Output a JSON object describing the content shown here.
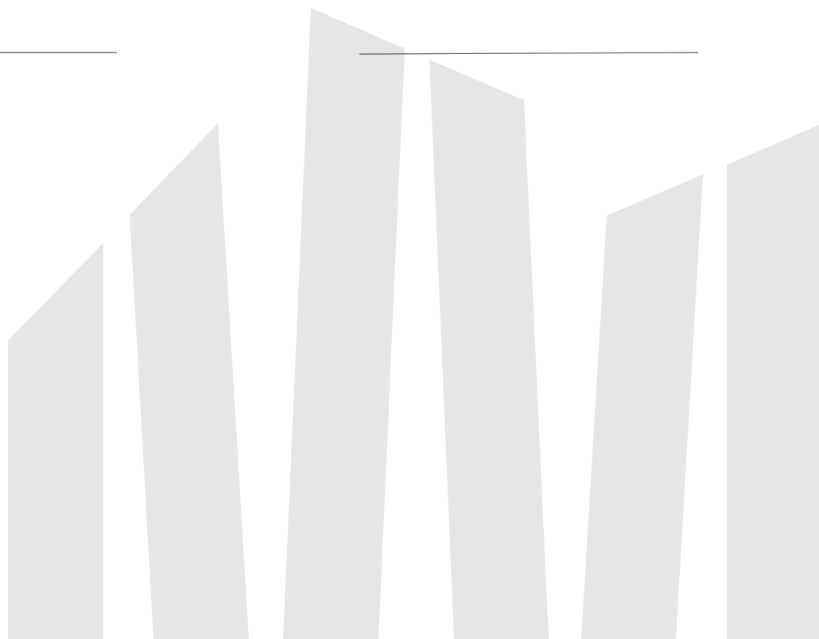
{
  "page": {
    "background_color": "#ffffff"
  },
  "decor": {
    "shape_color": "#e6e6e6",
    "rule_color": "#555555",
    "shapes": [
      "slanted-column",
      "slanted-column",
      "slanted-column",
      "slanted-column",
      "slanted-column",
      "slanted-column",
      "slanted-column"
    ],
    "rules": [
      "horizontal-rule",
      "horizontal-rule"
    ]
  }
}
